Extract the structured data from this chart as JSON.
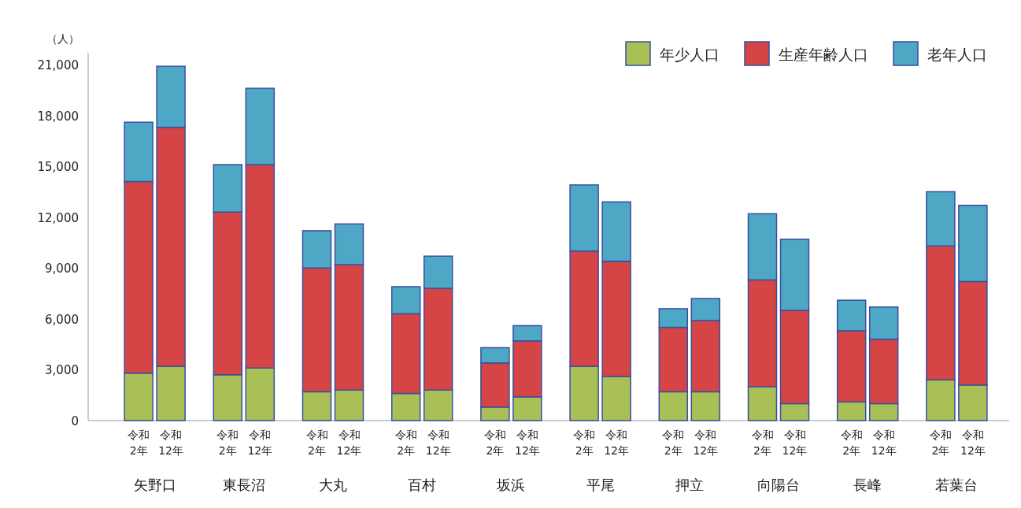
{
  "chart_data": {
    "type": "bar",
    "stacked": true,
    "ylabel": "（人）",
    "categories": [
      "令和\n2年",
      "令和\n12年",
      "令和\n2年",
      "令和\n12年",
      "令和\n2年",
      "令和\n12年",
      "令和\n2年",
      "令和\n12年",
      "令和\n2年",
      "令和\n12年",
      "令和\n2年",
      "令和\n12年",
      "令和\n2年",
      "令和\n12年",
      "令和\n2年",
      "令和\n12年",
      "令和\n2年",
      "令和\n12年",
      "令和\n2年",
      "令和\n12年"
    ],
    "annotations": [
      "矢野口",
      "東長沼",
      "大丸",
      "百村",
      "坂浜",
      "平尾",
      "押立",
      "向陽台",
      "長峰",
      "若葉台"
    ],
    "series": [
      {
        "name": "年少人口",
        "color": "#a9c056",
        "values": [
          2800,
          3200,
          2700,
          3100,
          1700,
          1800,
          1600,
          1800,
          800,
          1400,
          3200,
          2600,
          1700,
          1700,
          2000,
          1000,
          1100,
          1000,
          2400,
          2100
        ]
      },
      {
        "name": "生産年齢人口",
        "color": "#d64545",
        "values": [
          11300,
          14100,
          9600,
          12000,
          7300,
          7400,
          4700,
          6000,
          2600,
          3300,
          6800,
          6800,
          3800,
          4200,
          6300,
          5500,
          4200,
          3800,
          7900,
          6100
        ]
      },
      {
        "name": "老年人口",
        "color": "#4ea7c4",
        "values": [
          3500,
          3600,
          2800,
          4500,
          2200,
          2400,
          1600,
          1900,
          900,
          900,
          3900,
          3500,
          1100,
          1300,
          3900,
          4200,
          1800,
          1900,
          3200,
          4500
        ]
      }
    ],
    "ylim": [
      0,
      21000
    ],
    "yticks": [
      {
        "value": 0,
        "label": "0"
      },
      {
        "value": 3000,
        "label": "3,000"
      },
      {
        "value": 6000,
        "label": "6,000"
      },
      {
        "value": 9000,
        "label": "9,000"
      },
      {
        "value": 12000,
        "label": "12,000"
      },
      {
        "value": 15000,
        "label": "15,000"
      },
      {
        "value": 18000,
        "label": "18,000"
      },
      {
        "value": 21000,
        "label": "21,000"
      }
    ],
    "legend": "top right"
  }
}
